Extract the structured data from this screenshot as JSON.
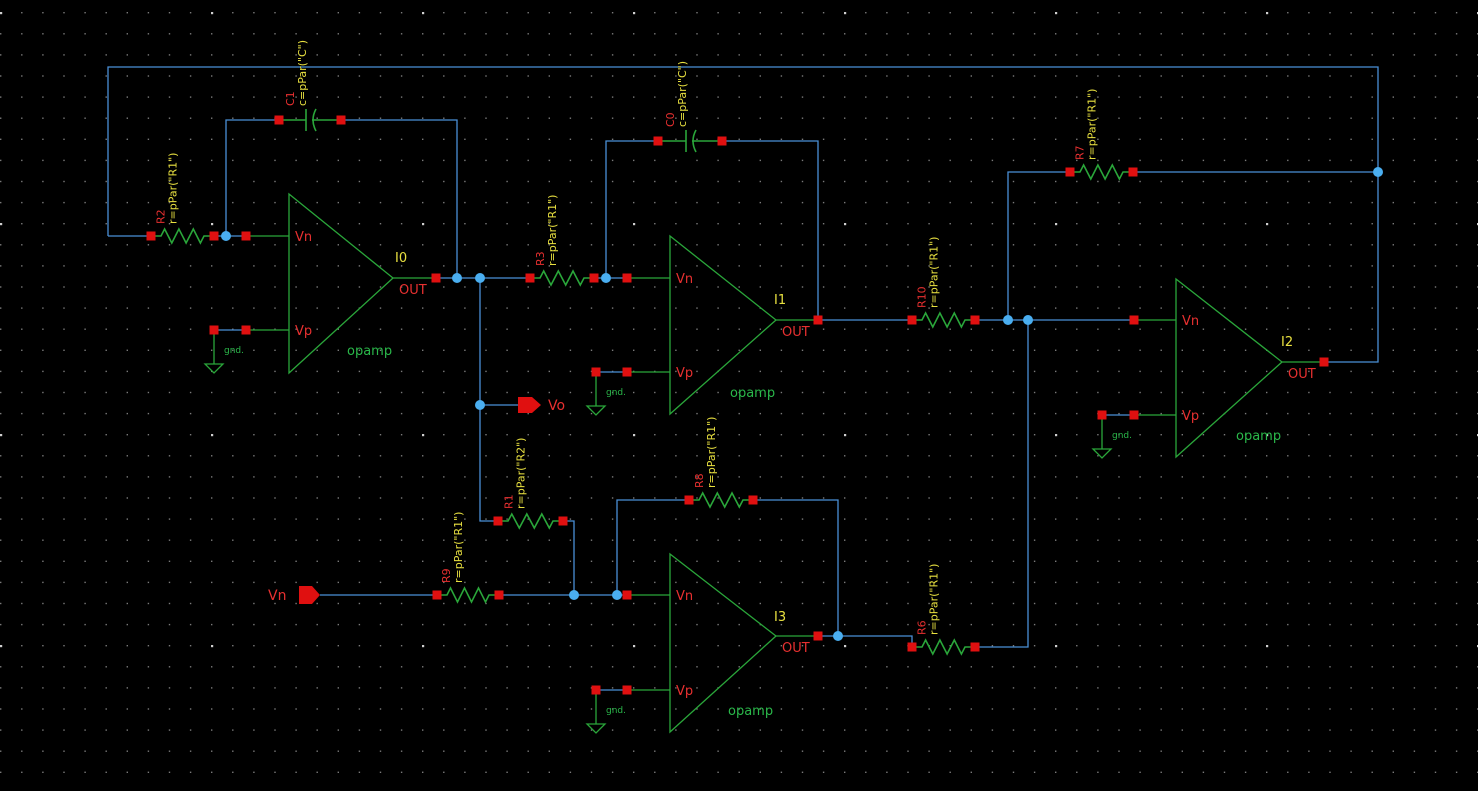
{
  "schematic": {
    "opamps": [
      {
        "id": "I0",
        "inst": "I0",
        "cell": "opamp",
        "vn": "Vn",
        "vp": "Vp",
        "out": "OUT"
      },
      {
        "id": "I1",
        "inst": "I1",
        "cell": "opamp",
        "vn": "Vn",
        "vp": "Vp",
        "out": "OUT"
      },
      {
        "id": "I2",
        "inst": "I2",
        "cell": "opamp",
        "vn": "Vn",
        "vp": "Vp",
        "out": "OUT"
      },
      {
        "id": "I3",
        "inst": "I3",
        "cell": "opamp",
        "vn": "Vn",
        "vp": "Vp",
        "out": "OUT"
      }
    ],
    "resistors": [
      {
        "ref": "R2",
        "param": "r=pPar(\"R1\")"
      },
      {
        "ref": "R3",
        "param": "r=pPar(\"R1\")"
      },
      {
        "ref": "R7",
        "param": "r=pPar(\"R1\")"
      },
      {
        "ref": "R10",
        "param": "r=pPar(\"R1\")"
      },
      {
        "ref": "R1",
        "param": "r=pPar(\"R2\")"
      },
      {
        "ref": "R8",
        "param": "r=pPar(\"R1\")"
      },
      {
        "ref": "R9",
        "param": "r=pPar(\"R1\")"
      },
      {
        "ref": "R6",
        "param": "r=pPar(\"R1\")"
      }
    ],
    "capacitors": [
      {
        "ref": "C1",
        "param": "c=pPar(\"C\")"
      },
      {
        "ref": "C0",
        "param": "c=pPar(\"C\")"
      }
    ],
    "grounds": [
      {
        "label": "gnd."
      },
      {
        "label": "gnd."
      },
      {
        "label": "gnd."
      },
      {
        "label": "gnd."
      }
    ],
    "ports": [
      {
        "name": "Vo",
        "direction": "output"
      },
      {
        "name": "Vn",
        "direction": "input"
      }
    ],
    "colors": {
      "background": "#000000",
      "wire": "#4a8fd6",
      "symbol": "#2aa63a",
      "pin": "#e01010",
      "instance_label": "#e8e040",
      "grid_dot": "#9a9a9a"
    }
  }
}
